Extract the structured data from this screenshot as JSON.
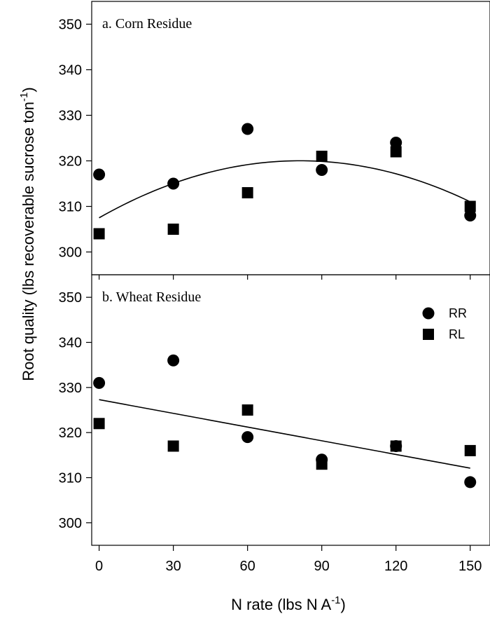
{
  "chart_data": {
    "type": "scatter",
    "ylabel_main": "Root quality (lbs recoverable sucrose ton",
    "ylabel_sup": "-1",
    "ylabel_close": ")",
    "xlabel_main": "N rate (lbs N A",
    "xlabel_sup": "-1",
    "xlabel_close": ")",
    "x_ticks": [
      0,
      30,
      60,
      90,
      120,
      150
    ],
    "y_ticks": [
      300,
      310,
      320,
      330,
      340,
      350
    ],
    "xlim": [
      -3,
      158
    ],
    "ylim": [
      295,
      355
    ],
    "legend": {
      "placement": "top-right",
      "entries": [
        {
          "label": "RR",
          "marker": "circle"
        },
        {
          "label": "RL",
          "marker": "square"
        }
      ]
    },
    "panels": [
      {
        "title": "a. Corn Residue",
        "series": [
          {
            "name": "RR",
            "marker": "circle",
            "x": [
              0,
              30,
              60,
              90,
              120,
              150
            ],
            "y": [
              317,
              315,
              327,
              318,
              324,
              308
            ]
          },
          {
            "name": "RL",
            "marker": "square",
            "x": [
              0,
              30,
              60,
              90,
              120,
              150
            ],
            "y": [
              304,
              305,
              313,
              321,
              322,
              310
            ]
          }
        ],
        "fit": {
          "type": "quadratic",
          "coefficients": [
            307.5,
            0.3085,
            -0.0019
          ],
          "x_range": [
            0,
            150
          ]
        }
      },
      {
        "title": "b. Wheat Residue",
        "series": [
          {
            "name": "RR",
            "marker": "circle",
            "x": [
              0,
              30,
              60,
              90,
              120,
              150
            ],
            "y": [
              331,
              336,
              319,
              314,
              317,
              309
            ]
          },
          {
            "name": "RL",
            "marker": "square",
            "x": [
              0,
              30,
              60,
              90,
              120,
              150
            ],
            "y": [
              322,
              317,
              325,
              313,
              317,
              316
            ]
          }
        ],
        "fit": {
          "type": "linear",
          "coefficients": [
            327.3,
            -0.1013
          ],
          "x_range": [
            0,
            150
          ]
        }
      }
    ]
  }
}
